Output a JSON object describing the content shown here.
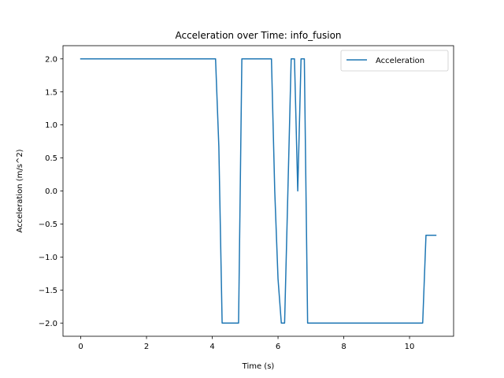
{
  "chart_data": {
    "type": "line",
    "title": "Acceleration over Time: info_fusion",
    "xlabel": "Time (s)",
    "ylabel": "Acceleration (m/s^2)",
    "xlim": [
      -0.54,
      11.34
    ],
    "ylim": [
      -2.2,
      2.2
    ],
    "xticks": [
      0,
      2,
      4,
      6,
      8,
      10
    ],
    "xtick_labels": [
      "0",
      "2",
      "4",
      "6",
      "8",
      "10"
    ],
    "yticks": [
      2.0,
      1.5,
      1.0,
      0.5,
      0.0,
      -0.5,
      -1.0,
      -1.5,
      -2.0
    ],
    "ytick_labels": [
      "2.0",
      "1.5",
      "1.0",
      "0.5",
      "0.0",
      "−0.5",
      "−1.0",
      "−1.5",
      "−2.0"
    ],
    "grid": false,
    "legend_position": "upper right",
    "series": [
      {
        "name": "Acceleration",
        "color": "#1f77b4",
        "x": [
          0,
          4.1,
          4.2,
          4.3,
          4.4,
          4.5,
          4.6,
          4.7,
          4.8,
          4.9,
          5.0,
          5.1,
          5.2,
          5.3,
          5.4,
          5.5,
          5.6,
          5.7,
          5.8,
          5.9,
          6.0,
          6.1,
          6.2,
          6.3,
          6.4,
          6.5,
          6.6,
          6.7,
          6.8,
          6.9,
          7.0,
          8.0,
          9.0,
          10.0,
          10.4,
          10.5,
          10.6,
          10.8
        ],
        "y": [
          2.0,
          2.0,
          0.67,
          -2.0,
          -2.0,
          -2.0,
          -2.0,
          -2.0,
          -2.0,
          2.0,
          2.0,
          2.0,
          2.0,
          2.0,
          2.0,
          2.0,
          2.0,
          2.0,
          2.0,
          0.0,
          -1.33,
          -2.0,
          -2.0,
          0.0,
          2.0,
          2.0,
          0.0,
          2.0,
          2.0,
          -2.0,
          -2.0,
          -2.0,
          -2.0,
          -2.0,
          -2.0,
          -0.67,
          -0.67,
          -0.67
        ]
      }
    ]
  }
}
